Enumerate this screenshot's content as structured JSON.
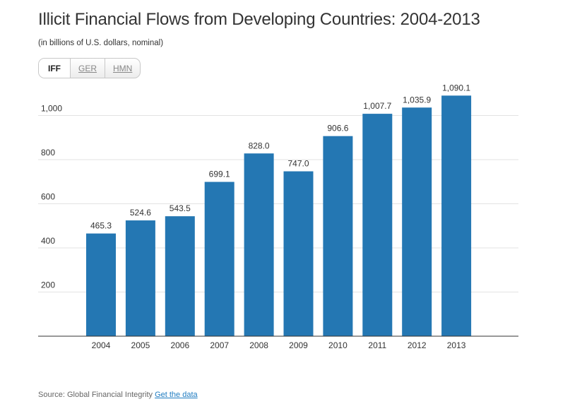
{
  "title": "Illicit Financial Flows from Developing Countries: 2004-2013",
  "subtitle": "(in billions of U.S. dollars, nominal)",
  "toggle": {
    "buttons": [
      {
        "label": "IFF",
        "active": true
      },
      {
        "label": "GER",
        "active": false
      },
      {
        "label": "HMN",
        "active": false
      }
    ]
  },
  "footer": {
    "source_text": "Source: Global Financial Integrity",
    "link_label": "Get the data"
  },
  "colors": {
    "bar": "#2477b3",
    "gridline": "#e3e3e3",
    "axis": "#333333",
    "link": "#1f7cc1"
  },
  "chart_data": {
    "type": "bar",
    "title": "Illicit Financial Flows from Developing Countries: 2004-2013",
    "subtitle": "(in billions of U.S. dollars, nominal)",
    "categories": [
      "2004",
      "2005",
      "2006",
      "2007",
      "2008",
      "2009",
      "2010",
      "2011",
      "2012",
      "2013"
    ],
    "values": [
      465.3,
      524.6,
      543.5,
      699.1,
      828.0,
      747.0,
      906.6,
      1007.7,
      1035.9,
      1090.1
    ],
    "value_labels": [
      "465.3",
      "524.6",
      "543.5",
      "699.1",
      "828.0",
      "747.0",
      "906.6",
      "1,007.7",
      "1,035.9",
      "1,090.1"
    ],
    "yticks": [
      200,
      400,
      600,
      800,
      1000
    ],
    "ytick_labels": [
      "200",
      "400",
      "600",
      "800",
      "1,000"
    ],
    "ylim": [
      0,
      1050
    ],
    "xlabel": "",
    "ylabel": "",
    "grid": true,
    "legend": false
  }
}
